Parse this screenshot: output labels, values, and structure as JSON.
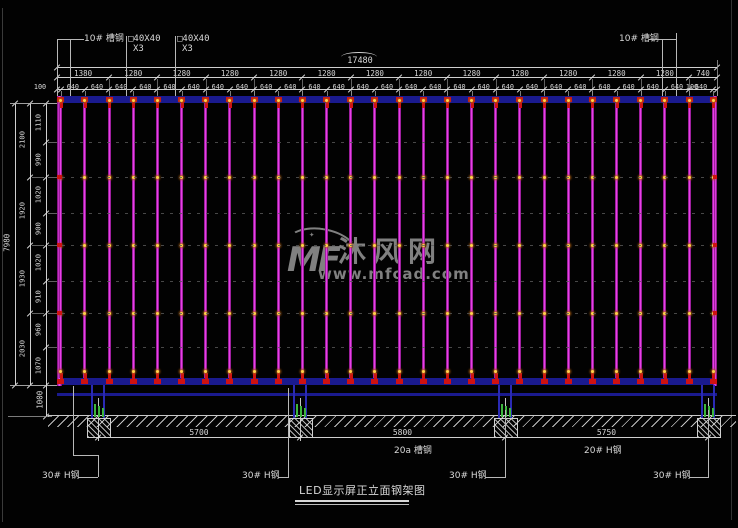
{
  "title": "LED显示屏正立面钢架图",
  "watermark": {
    "logo": "MF",
    "star": "✦",
    "name": "沐风网",
    "url": "www.mfcad.com"
  },
  "annotations": {
    "top_left_channel": "10# 槽钢",
    "tube1": "□40X40",
    "tube1_qty": "X3",
    "tube2": "□40X40",
    "tube2_qty": "X3",
    "top_right_channel": "10# 槽钢",
    "ground_channel": "20a 槽钢",
    "ground_beam": "20# H钢",
    "column_labels": [
      "30# H钢",
      "30# H钢",
      "30# H钢",
      "30# H钢"
    ]
  },
  "dimensions": {
    "total_width": "17480",
    "top_segments": [
      "1380",
      "1280",
      "1280",
      "1280",
      "1280",
      "1280",
      "1280",
      "1280",
      "1280",
      "1280",
      "1280",
      "1280",
      "1280",
      "740"
    ],
    "top_subsegments": [
      "100",
      "640",
      "640",
      "640",
      "640",
      "640",
      "640",
      "640",
      "640",
      "640",
      "640",
      "640",
      "640",
      "640",
      "640",
      "640",
      "640",
      "640",
      "640",
      "640",
      "640",
      "640",
      "640",
      "640",
      "640",
      "640",
      "640",
      "640",
      "100"
    ],
    "left_total": "7980",
    "left_groups": [
      "2100",
      "1920",
      "1930",
      "2030"
    ],
    "left_segments": [
      "1110",
      "990",
      "1020",
      "900",
      "1020",
      "910",
      "960",
      "1070"
    ],
    "ground_clearance": "1000",
    "footing_spans": [
      "5700",
      "5800",
      "5750"
    ]
  },
  "colors": {
    "post_magenta": "#c41ec4",
    "chord_navy": "#1a1a8e",
    "joint_yellow": "#ffd24a",
    "tip_red": "#cf1212",
    "anchor_green": "#3db53d",
    "dim_text": "#d8d8d8"
  }
}
